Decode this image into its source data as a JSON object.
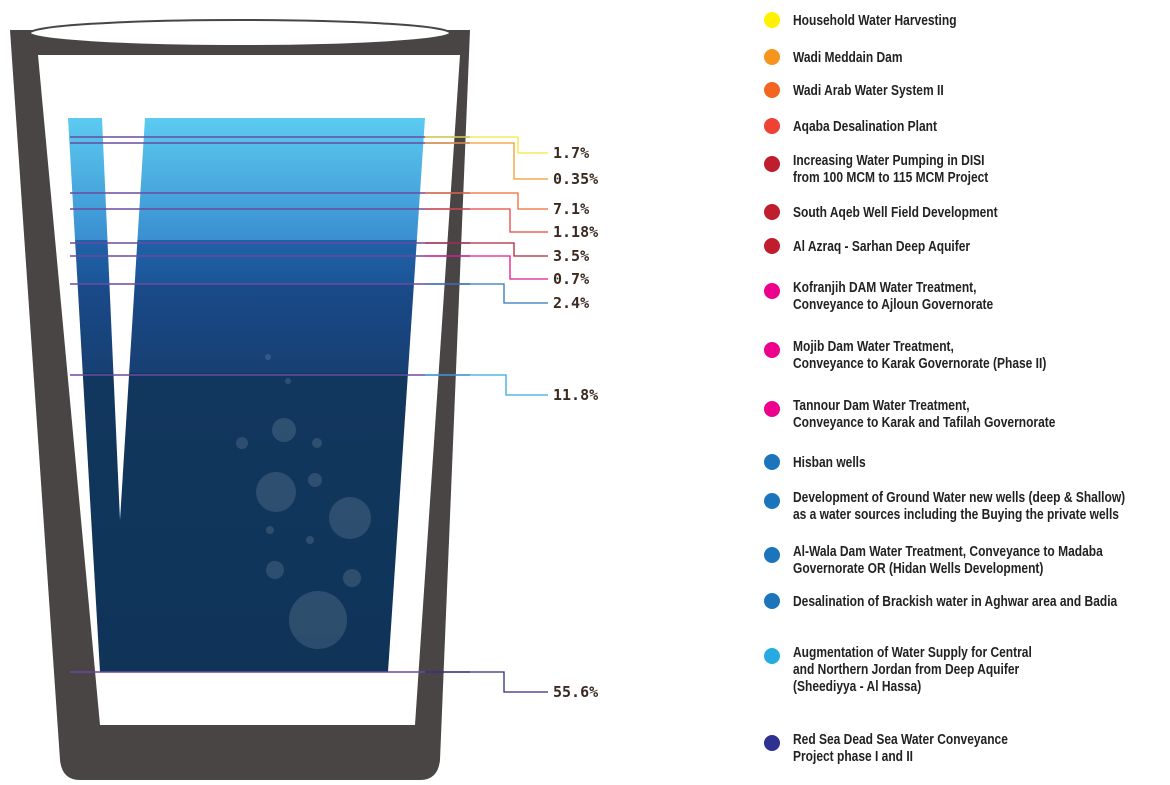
{
  "callouts": [
    {
      "label": "1.7%",
      "color": "#f3e73a"
    },
    {
      "label": "0.35%",
      "color": "#f39a2c"
    },
    {
      "label": "7.1%",
      "color": "#f06a33"
    },
    {
      "label": "1.18%",
      "color": "#e8453c"
    },
    {
      "label": "3.5%",
      "color": "#b3203a"
    },
    {
      "label": "0.7%",
      "color": "#e0198c"
    },
    {
      "label": "2.4%",
      "color": "#2e74ba"
    },
    {
      "label": "11.8%",
      "color": "#35a7e0"
    },
    {
      "label": "55.6%",
      "color": "#2e2a7a"
    }
  ],
  "legend": [
    {
      "lines": [
        "Household Water Harvesting"
      ],
      "color": "#fff200"
    },
    {
      "lines": [
        "Wadi Meddain Dam"
      ],
      "color": "#f7941d"
    },
    {
      "lines": [
        "Wadi Arab Water System II"
      ],
      "color": "#f26522"
    },
    {
      "lines": [
        "Aqaba Desalination Plant"
      ],
      "color": "#ef4136"
    },
    {
      "lines": [
        "Increasing Water Pumping in DISI",
        "from 100 MCM to 115 MCM Project"
      ],
      "color": "#be1e2d"
    },
    {
      "lines": [
        "South Aqeb Well Field Development"
      ],
      "color": "#be1e2d"
    },
    {
      "lines": [
        "Al Azraq - Sarhan Deep Aquifer"
      ],
      "color": "#be1e2d"
    },
    {
      "lines": [
        "Kofranjih DAM Water Treatment,",
        "Conveyance to Ajloun Governorate"
      ],
      "color": "#ec008c"
    },
    {
      "lines": [
        "Mojib Dam Water Treatment,",
        "Conveyance to Karak Governorate (Phase II)"
      ],
      "color": "#ec008c"
    },
    {
      "lines": [
        "Tannour Dam Water Treatment,",
        "Conveyance to Karak and Tafilah Governorate"
      ],
      "color": "#ec008c"
    },
    {
      "lines": [
        "Hisban wells"
      ],
      "color": "#1c75bc"
    },
    {
      "lines": [
        "Development of Ground Water new wells (deep & Shallow)",
        "as a water sources including the Buying the private wells"
      ],
      "color": "#1c75bc"
    },
    {
      "lines": [
        "Al-Wala Dam Water Treatment, Conveyance to Madaba",
        "Governorate OR (Hidan Wells Development)"
      ],
      "color": "#1c75bc"
    },
    {
      "lines": [
        "Desalination of Brackish water in Aghwar area and Badia"
      ],
      "color": "#1c75bc"
    },
    {
      "lines": [
        "Augmentation of Water Supply for Central",
        "and Northern Jordan from Deep Aquifer",
        "(Sheediyya - Al Hassa)"
      ],
      "color": "#27aae1"
    },
    {
      "lines": [
        "Red Sea Dead Sea Water Conveyance",
        "Project phase I and II"
      ],
      "color": "#2e3192"
    }
  ]
}
